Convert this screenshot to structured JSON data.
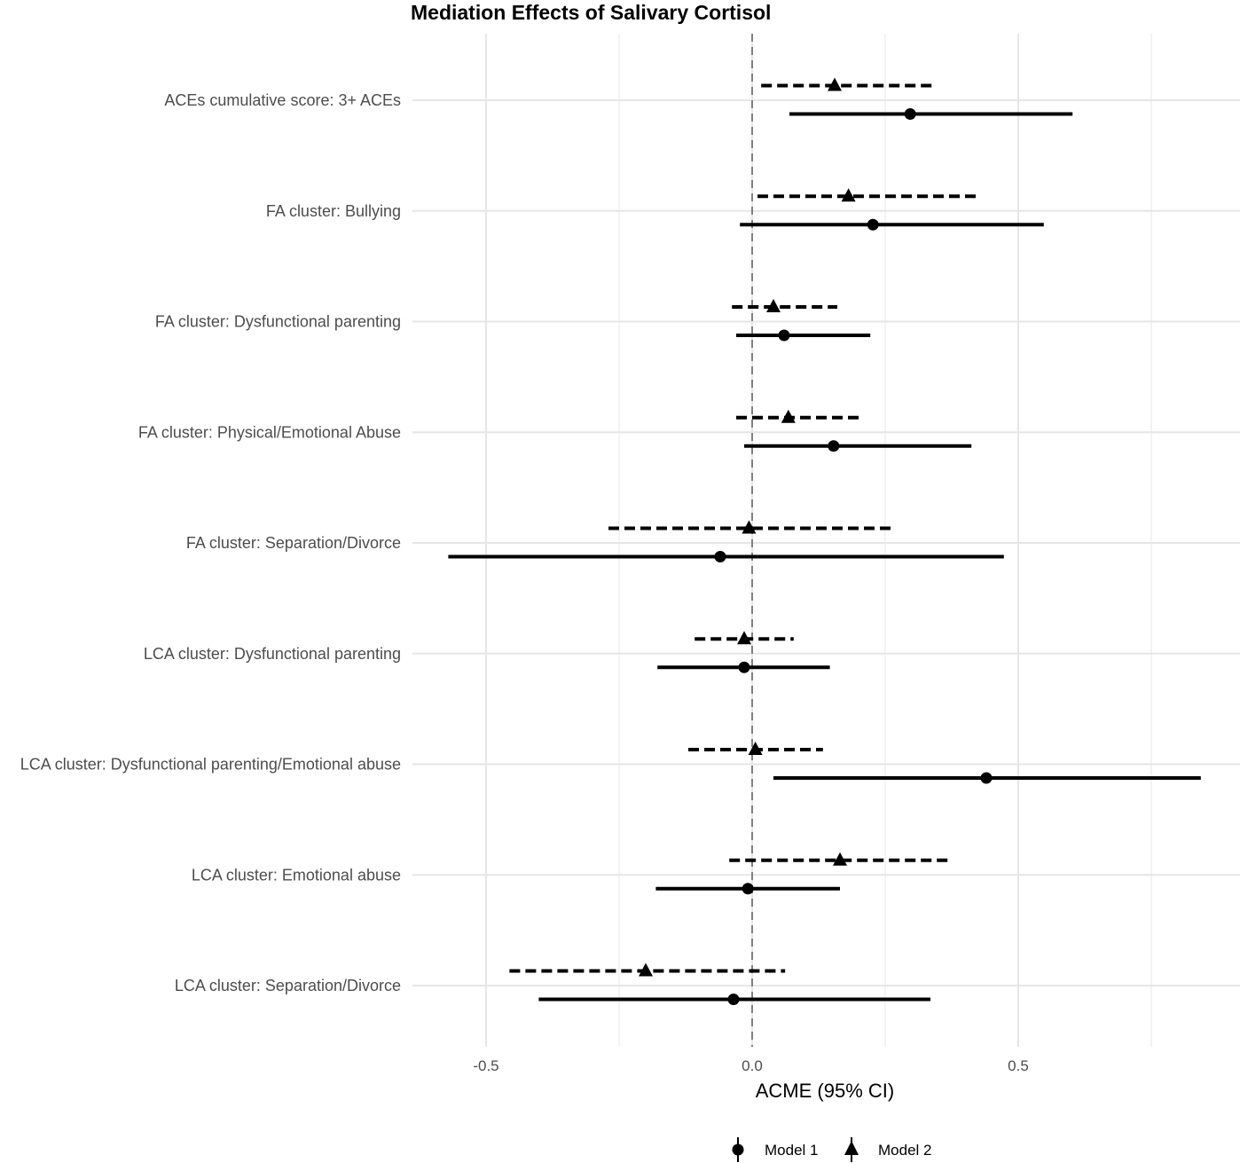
{
  "chart_data": {
    "type": "forest",
    "title": "Mediation Effects of Salivary Cortisol",
    "xlabel": "ACME (95% CI)",
    "ylabel": "",
    "xlim": [
      -0.64,
      0.92
    ],
    "x_ticks": [
      -0.5,
      0.0,
      0.5
    ],
    "x_tick_labels": [
      "-0.5",
      "0.0",
      "0.5"
    ],
    "reference_line": 0.0,
    "grid": true,
    "legend_position": "bottom",
    "categories": [
      "ACEs cumulative score: 3+ ACEs",
      "FA cluster: Bullying",
      "FA cluster: Dysfunctional parenting",
      "FA cluster: Physical/Emotional Abuse",
      "FA cluster: Separation/Divorce",
      "LCA cluster: Dysfunctional parenting",
      "LCA cluster: Dysfunctional parenting/Emotional abuse",
      "LCA cluster: Emotional abuse",
      "LCA cluster: Separation/Divorce"
    ],
    "series": [
      {
        "name": "Model 1",
        "marker": "circle",
        "line_style": "solid",
        "estimates": [
          0.297,
          0.227,
          0.06,
          0.153,
          -0.06,
          -0.015,
          0.44,
          -0.008,
          -0.035
        ],
        "lower": [
          0.07,
          -0.023,
          -0.03,
          -0.015,
          -0.571,
          -0.178,
          0.04,
          -0.181,
          -0.401
        ],
        "upper": [
          0.602,
          0.548,
          0.222,
          0.412,
          0.473,
          0.146,
          0.843,
          0.165,
          0.335
        ]
      },
      {
        "name": "Model 2",
        "marker": "triangle",
        "line_style": "dashed",
        "estimates": [
          0.155,
          0.181,
          0.04,
          0.068,
          -0.006,
          -0.015,
          0.006,
          0.165,
          -0.2
        ],
        "lower": [
          0.017,
          0.01,
          -0.038,
          -0.03,
          -0.27,
          -0.108,
          -0.12,
          -0.043,
          -0.456
        ],
        "upper": [
          0.34,
          0.422,
          0.16,
          0.205,
          0.27,
          0.078,
          0.133,
          0.37,
          0.062
        ]
      }
    ]
  }
}
